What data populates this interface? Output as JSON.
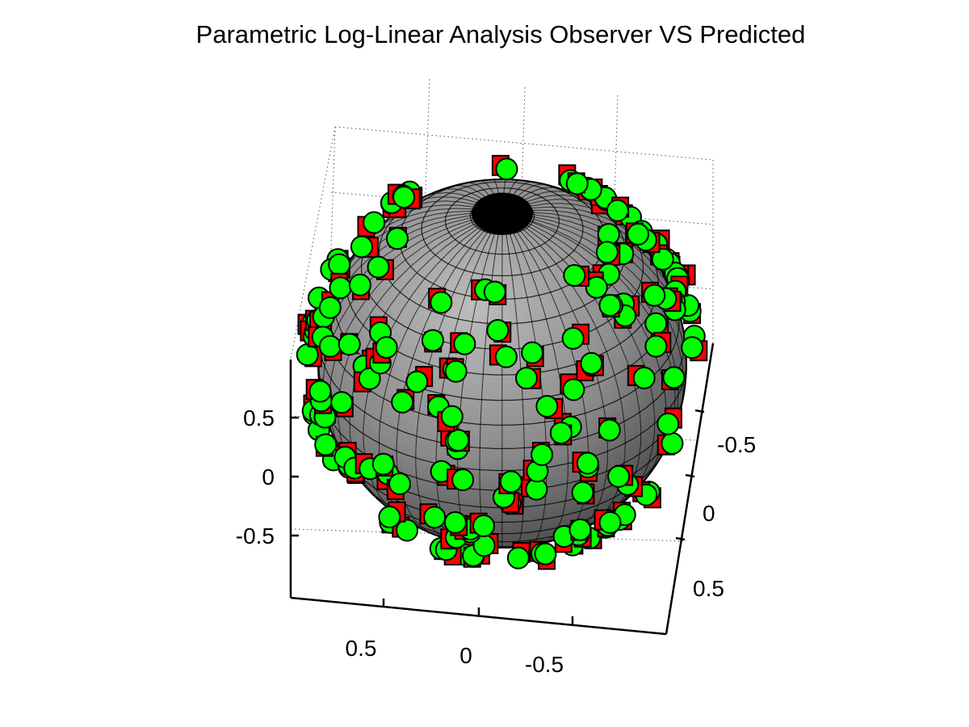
{
  "chart_data": {
    "type": "scatter",
    "title": "Parametric Log-Linear Analysis Observer VS Predicted",
    "xlabel": "",
    "ylabel": "",
    "zlabel": "",
    "x_ticks": [
      "0.5",
      "0",
      "-0.5"
    ],
    "y_ticks": [
      "-0.5",
      "0",
      "0.5"
    ],
    "z_ticks": [
      "0.5",
      "0",
      "-0.5"
    ],
    "xlim": [
      -1,
      1
    ],
    "ylim": [
      -1,
      1
    ],
    "zlim": [
      -1,
      1
    ],
    "grid": true,
    "sphere": {
      "radius": 1,
      "color": "#808080",
      "mesh_color": "#000000"
    },
    "series": [
      {
        "marker": "circle",
        "color": "#00ff00",
        "edge": "#000000"
      },
      {
        "marker": "square",
        "color": "#ff0000",
        "edge": "#000000"
      }
    ],
    "connector_color": "#e6e6e6",
    "points_visible": 260
  }
}
